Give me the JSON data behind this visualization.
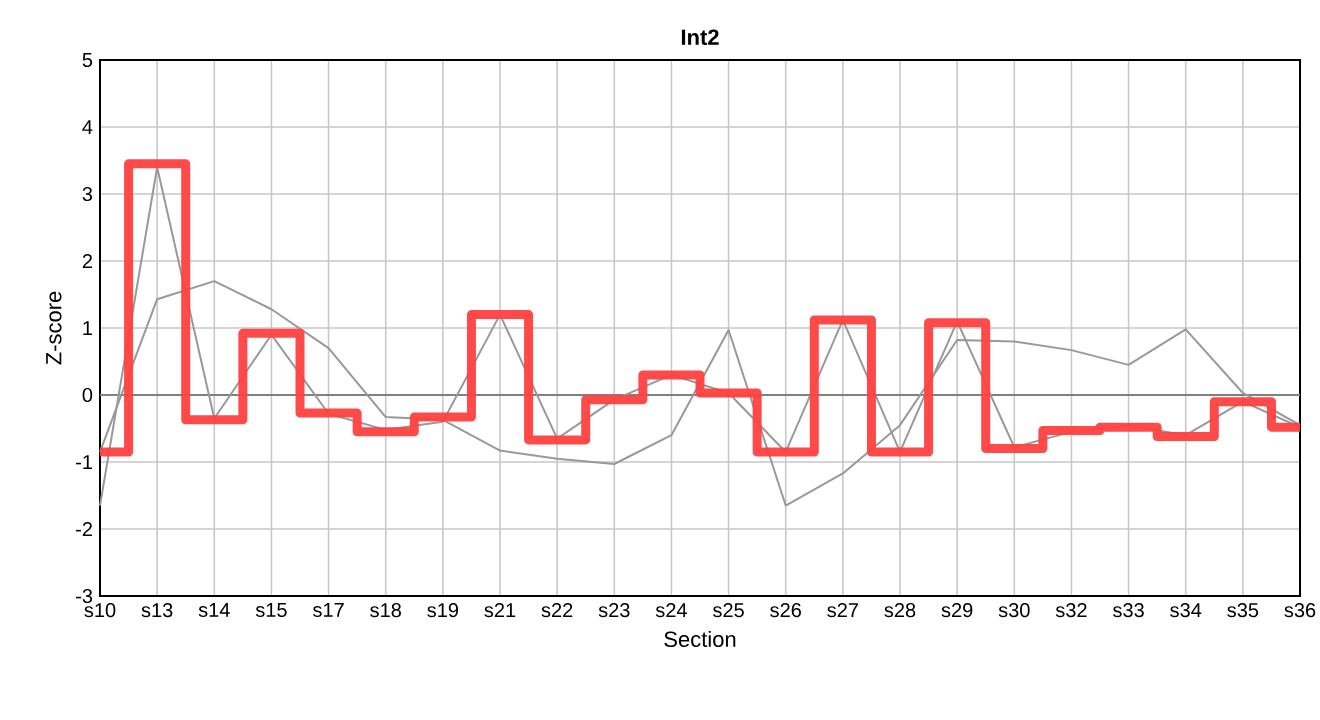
{
  "chart_data": {
    "type": "line",
    "title": "Int2",
    "xlabel": "Section",
    "ylabel": "Z-score",
    "categories": [
      "s10",
      "s13",
      "s14",
      "s15",
      "s17",
      "s18",
      "s19",
      "s21",
      "s22",
      "s23",
      "s24",
      "s25",
      "s26",
      "s27",
      "s28",
      "s29",
      "s30",
      "s32",
      "s33",
      "s34",
      "s35",
      "s36"
    ],
    "series": [
      {
        "color": "#999999",
        "values": [
          -1.65,
          3.4,
          -0.35,
          0.9,
          -0.28,
          -0.52,
          -0.4,
          1.2,
          -0.65,
          -0.07,
          0.3,
          0.03,
          -0.85,
          1.12,
          -0.85,
          1.1,
          -0.78,
          -0.55,
          -0.45,
          -0.6,
          -0.1,
          -0.48
        ]
      },
      {
        "color": "#999999",
        "values": [
          -0.85,
          1.43,
          1.7,
          1.28,
          0.7,
          -0.33,
          -0.37,
          -0.83,
          -0.95,
          -1.03,
          -0.6,
          0.97,
          -1.65,
          -1.17,
          -0.45,
          0.82,
          0.8,
          0.67,
          0.45,
          0.98,
          0.03,
          -0.45
        ]
      },
      {
        "type": "step",
        "color": "#ff4040",
        "values": [
          -0.85,
          3.45,
          -0.37,
          0.92,
          -0.27,
          -0.55,
          -0.33,
          1.2,
          -0.67,
          -0.07,
          0.3,
          0.03,
          -0.85,
          1.12,
          -0.85,
          1.08,
          -0.8,
          -0.53,
          -0.48,
          -0.62,
          -0.1,
          -0.48
        ]
      }
    ],
    "ylim": [
      -3,
      5
    ],
    "yticks": [
      -3,
      -2,
      -1,
      0,
      1,
      2,
      3,
      4,
      5
    ],
    "grid": true,
    "ref_lines": [
      {
        "axis": "y",
        "value": 0,
        "color": "#808080"
      }
    ]
  }
}
